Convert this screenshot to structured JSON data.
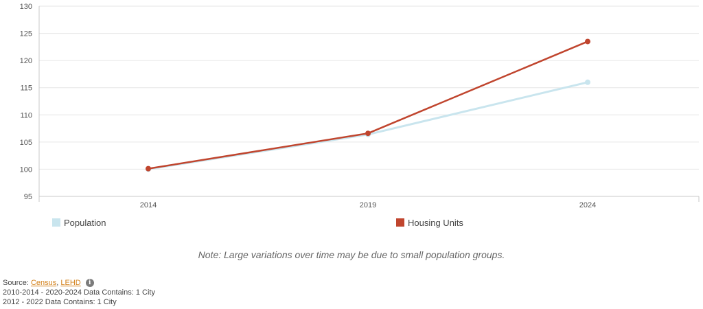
{
  "chart_data": {
    "type": "line",
    "x": [
      "2014",
      "2019",
      "2024"
    ],
    "series": [
      {
        "name": "Population",
        "values": [
          100,
          106.4,
          116.0
        ],
        "color": "#c9e5ee"
      },
      {
        "name": "Housing Units",
        "values": [
          100.1,
          106.6,
          123.5
        ],
        "color": "#c0452e"
      }
    ],
    "y_ticks": [
      95,
      100,
      105,
      110,
      115,
      120,
      125,
      130
    ],
    "ylim": [
      95,
      130
    ],
    "grid": true,
    "legend_position": "bottom"
  },
  "legend": {
    "population": "Population",
    "housing": "Housing Units"
  },
  "note": "Note: Large variations over time may be due to small population groups.",
  "source": {
    "prefix": "Source:",
    "census": "Census",
    "separator": ",",
    "lehd": "LEHD",
    "info_icon": "info-icon",
    "line1": "2010-2014 - 2020-2024 Data Contains: 1 City",
    "line2": "2012 - 2022 Data Contains: 1 City"
  }
}
